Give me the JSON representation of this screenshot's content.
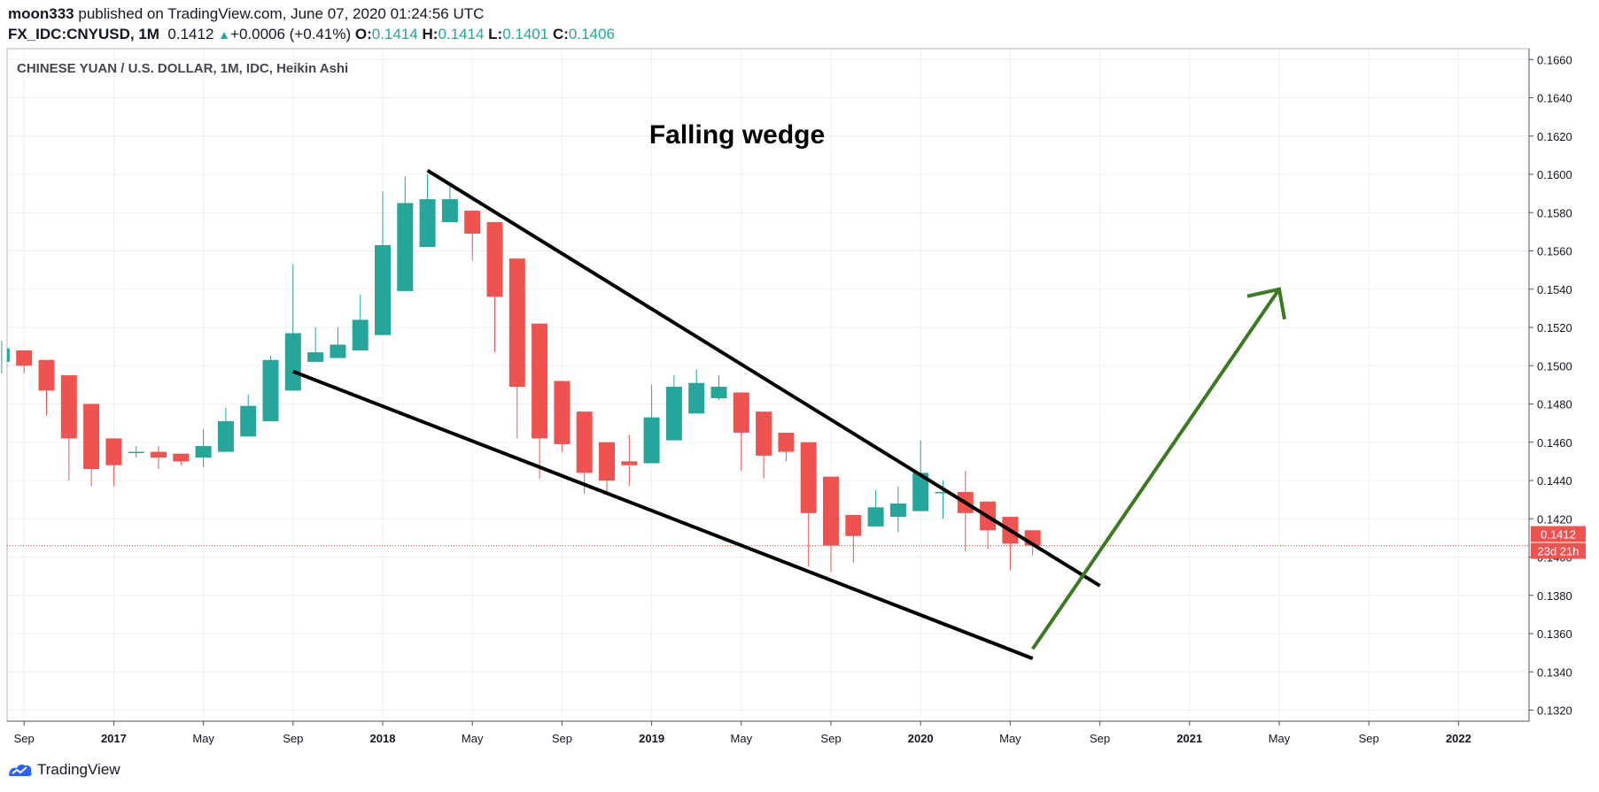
{
  "header": {
    "author": "moon333",
    "published_text": "published on TradingView.com, June 07, 2020 01:24:56 UTC",
    "symbol": "FX_IDC:CNYUSD, 1M",
    "last": "0.1412",
    "change": "+0.0006 (+0.41%)",
    "o_label": "O:",
    "o_value": "0.1414",
    "h_label": "H:",
    "h_value": "0.1414",
    "l_label": "L:",
    "l_value": "0.1401",
    "c_label": "C:",
    "c_value": "0.1406"
  },
  "footer": {
    "brand": "TradingView"
  },
  "chart_data": {
    "type": "candlestick",
    "title": "CHINESE YUAN / U.S. DOLLAR, 1M, IDC, Heikin Ashi",
    "annotation": "Falling wedge",
    "xlabel": "",
    "ylabel": "",
    "ylim": [
      0.1312,
      0.1666
    ],
    "y_ticks": [
      "0.1660",
      "0.1640",
      "0.1620",
      "0.1600",
      "0.1580",
      "0.1560",
      "0.1540",
      "0.1520",
      "0.1500",
      "0.1480",
      "0.1460",
      "0.1440",
      "0.1420",
      "0.1400",
      "0.1380",
      "0.1360",
      "0.1340",
      "0.1320"
    ],
    "x_ticks": [
      "Sep",
      "2017",
      "May",
      "Sep",
      "2018",
      "May",
      "Sep",
      "2019",
      "May",
      "Sep",
      "2020",
      "May",
      "Sep",
      "2021",
      "May",
      "Sep",
      "2022"
    ],
    "x_range": [
      "2016-08",
      "2023-01"
    ],
    "grid": true,
    "colors": {
      "up": "#26a69a",
      "down": "#ef5350",
      "wedge": "#000000",
      "arrow": "#3b7a1e",
      "price_line": "#ef5350"
    },
    "price_label": "0.1412",
    "countdown_label": "23d 21h",
    "current_price": 0.1406,
    "candles": [
      {
        "date": "2016-08",
        "open": 0.1502,
        "high": 0.1513,
        "low": 0.1496,
        "close": 0.1509
      },
      {
        "date": "2016-09",
        "open": 0.1508,
        "high": 0.1508,
        "low": 0.1496,
        "close": 0.15
      },
      {
        "date": "2016-10",
        "open": 0.1503,
        "high": 0.1503,
        "low": 0.1474,
        "close": 0.1487
      },
      {
        "date": "2016-11",
        "open": 0.1495,
        "high": 0.1495,
        "low": 0.144,
        "close": 0.1462
      },
      {
        "date": "2016-12",
        "open": 0.148,
        "high": 0.148,
        "low": 0.1437,
        "close": 0.1446
      },
      {
        "date": "2017-01",
        "open": 0.1462,
        "high": 0.1462,
        "low": 0.1437,
        "close": 0.1448
      },
      {
        "date": "2017-02",
        "open": 0.1455,
        "high": 0.1458,
        "low": 0.1452,
        "close": 0.1455
      },
      {
        "date": "2017-03",
        "open": 0.1455,
        "high": 0.1458,
        "low": 0.1446,
        "close": 0.1452
      },
      {
        "date": "2017-04",
        "open": 0.1454,
        "high": 0.1454,
        "low": 0.1448,
        "close": 0.145
      },
      {
        "date": "2017-05",
        "open": 0.1452,
        "high": 0.1467,
        "low": 0.1447,
        "close": 0.1458
      },
      {
        "date": "2017-06",
        "open": 0.1455,
        "high": 0.1478,
        "low": 0.1455,
        "close": 0.1471
      },
      {
        "date": "2017-07",
        "open": 0.1463,
        "high": 0.1485,
        "low": 0.1463,
        "close": 0.1479
      },
      {
        "date": "2017-08",
        "open": 0.1471,
        "high": 0.1505,
        "low": 0.1471,
        "close": 0.1503
      },
      {
        "date": "2017-09",
        "open": 0.1487,
        "high": 0.1553,
        "low": 0.1487,
        "close": 0.1517
      },
      {
        "date": "2017-10",
        "open": 0.1502,
        "high": 0.152,
        "low": 0.1502,
        "close": 0.1507
      },
      {
        "date": "2017-11",
        "open": 0.1504,
        "high": 0.152,
        "low": 0.1504,
        "close": 0.1511
      },
      {
        "date": "2017-12",
        "open": 0.1508,
        "high": 0.1537,
        "low": 0.1508,
        "close": 0.1524
      },
      {
        "date": "2018-01",
        "open": 0.1516,
        "high": 0.1591,
        "low": 0.1516,
        "close": 0.1563
      },
      {
        "date": "2018-02",
        "open": 0.1539,
        "high": 0.1599,
        "low": 0.1539,
        "close": 0.1585
      },
      {
        "date": "2018-03",
        "open": 0.1562,
        "high": 0.16,
        "low": 0.1562,
        "close": 0.1587
      },
      {
        "date": "2018-04",
        "open": 0.1575,
        "high": 0.1596,
        "low": 0.1575,
        "close": 0.1587
      },
      {
        "date": "2018-05",
        "open": 0.1581,
        "high": 0.1581,
        "low": 0.1555,
        "close": 0.1569
      },
      {
        "date": "2018-06",
        "open": 0.1575,
        "high": 0.1575,
        "low": 0.1507,
        "close": 0.1536
      },
      {
        "date": "2018-07",
        "open": 0.1556,
        "high": 0.1556,
        "low": 0.1462,
        "close": 0.1489
      },
      {
        "date": "2018-08",
        "open": 0.1522,
        "high": 0.1522,
        "low": 0.1441,
        "close": 0.1462
      },
      {
        "date": "2018-09",
        "open": 0.1492,
        "high": 0.1492,
        "low": 0.1455,
        "close": 0.1459
      },
      {
        "date": "2018-10",
        "open": 0.1476,
        "high": 0.1476,
        "low": 0.1433,
        "close": 0.1444
      },
      {
        "date": "2018-11",
        "open": 0.146,
        "high": 0.146,
        "low": 0.1434,
        "close": 0.144
      },
      {
        "date": "2018-12",
        "open": 0.145,
        "high": 0.1464,
        "low": 0.1437,
        "close": 0.1448
      },
      {
        "date": "2019-01",
        "open": 0.1449,
        "high": 0.149,
        "low": 0.1449,
        "close": 0.1473
      },
      {
        "date": "2019-02",
        "open": 0.1461,
        "high": 0.1495,
        "low": 0.1461,
        "close": 0.1489
      },
      {
        "date": "2019-03",
        "open": 0.1475,
        "high": 0.1498,
        "low": 0.1475,
        "close": 0.1491
      },
      {
        "date": "2019-04",
        "open": 0.1483,
        "high": 0.1495,
        "low": 0.1482,
        "close": 0.1489
      },
      {
        "date": "2019-05",
        "open": 0.1486,
        "high": 0.1486,
        "low": 0.1445,
        "close": 0.1465
      },
      {
        "date": "2019-06",
        "open": 0.1476,
        "high": 0.1476,
        "low": 0.1441,
        "close": 0.1453
      },
      {
        "date": "2019-07",
        "open": 0.1465,
        "high": 0.1465,
        "low": 0.145,
        "close": 0.1455
      },
      {
        "date": "2019-08",
        "open": 0.146,
        "high": 0.146,
        "low": 0.1395,
        "close": 0.1423
      },
      {
        "date": "2019-09",
        "open": 0.1442,
        "high": 0.1442,
        "low": 0.1392,
        "close": 0.1406
      },
      {
        "date": "2019-10",
        "open": 0.1422,
        "high": 0.1422,
        "low": 0.1397,
        "close": 0.1411
      },
      {
        "date": "2019-11",
        "open": 0.1416,
        "high": 0.1435,
        "low": 0.1416,
        "close": 0.1426
      },
      {
        "date": "2019-12",
        "open": 0.1421,
        "high": 0.1437,
        "low": 0.1413,
        "close": 0.1428
      },
      {
        "date": "2020-01",
        "open": 0.1424,
        "high": 0.1461,
        "low": 0.1424,
        "close": 0.1444
      },
      {
        "date": "2020-02",
        "open": 0.1434,
        "high": 0.144,
        "low": 0.142,
        "close": 0.1434
      },
      {
        "date": "2020-03",
        "open": 0.1434,
        "high": 0.1445,
        "low": 0.1403,
        "close": 0.1423
      },
      {
        "date": "2020-04",
        "open": 0.1429,
        "high": 0.1429,
        "low": 0.1404,
        "close": 0.1414
      },
      {
        "date": "2020-05",
        "open": 0.1421,
        "high": 0.1421,
        "low": 0.1393,
        "close": 0.1407
      },
      {
        "date": "2020-06",
        "open": 0.1414,
        "high": 0.1414,
        "low": 0.1401,
        "close": 0.1406
      }
    ],
    "trendlines": [
      {
        "name": "upper",
        "from": {
          "date": "2018-03",
          "value": 0.1602
        },
        "to": {
          "date": "2020-09",
          "value": 0.1385
        }
      },
      {
        "name": "lower",
        "from": {
          "date": "2017-09",
          "value": 0.1497
        },
        "to": {
          "date": "2020-06",
          "value": 0.1347
        }
      },
      {
        "name": "arrow",
        "from": {
          "date": "2020-06",
          "value": 0.1352
        },
        "to": {
          "date": "2021-05",
          "value": 0.154
        }
      }
    ]
  }
}
